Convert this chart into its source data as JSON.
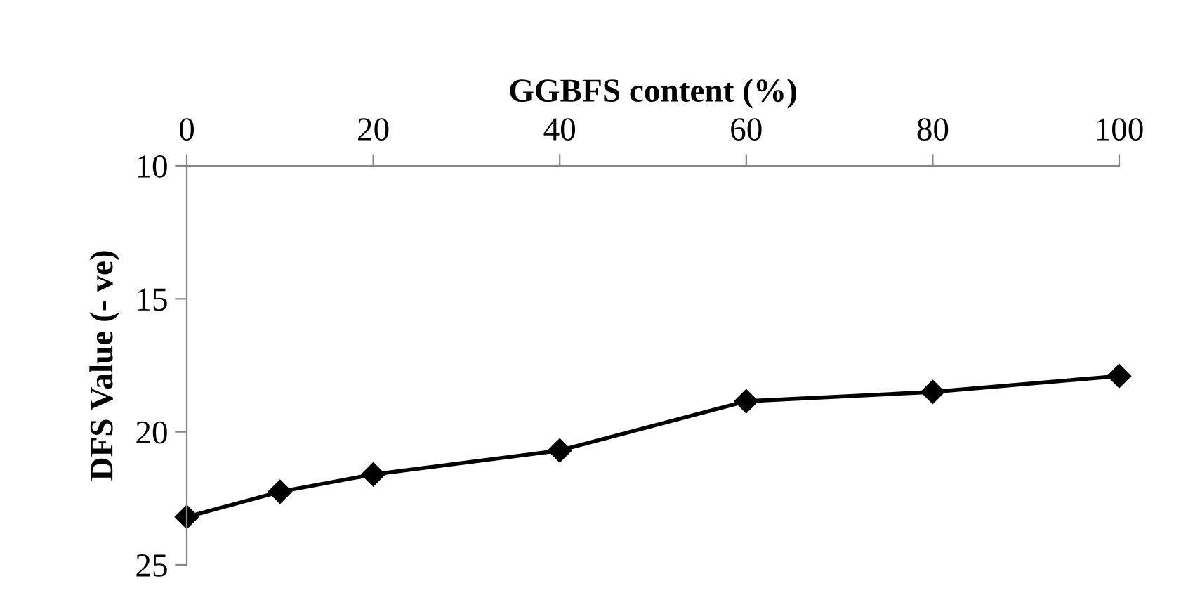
{
  "chart_data": {
    "type": "line",
    "xlabel": "GGBFS content (%)",
    "ylabel": "DFS Value (- ve)",
    "xlim": [
      0,
      100
    ],
    "xticks": [
      0,
      20,
      40,
      60,
      80,
      100
    ],
    "ylim": [
      25,
      10
    ],
    "yticks": [
      10,
      15,
      20,
      25
    ],
    "series": [
      {
        "color": "#000000",
        "x": [
          0,
          10,
          20,
          40,
          60,
          80,
          100
        ],
        "values": [
          23.2,
          22.25,
          21.6,
          20.7,
          18.85,
          18.5,
          17.9
        ]
      }
    ],
    "marker": "diamond",
    "line_style": "solid",
    "grid": false,
    "legend": false
  }
}
